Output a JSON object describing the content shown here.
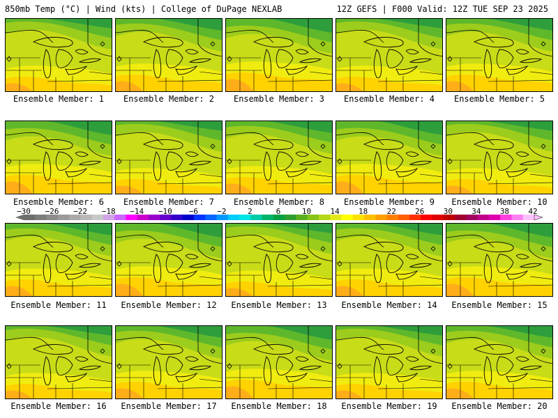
{
  "header": {
    "left_title": "850mb Temp (°C) | Wind (kts) | College of DuPage NEXLAB",
    "right_title": "12Z GEFS | F000 Valid: 12Z TUE SEP 23 2025"
  },
  "members": [
    {
      "label": "Ensemble Member: 1"
    },
    {
      "label": "Ensemble Member: 2"
    },
    {
      "label": "Ensemble Member: 3"
    },
    {
      "label": "Ensemble Member: 4"
    },
    {
      "label": "Ensemble Member: 5"
    },
    {
      "label": "Ensemble Member: 6"
    },
    {
      "label": "Ensemble Member: 7"
    },
    {
      "label": "Ensemble Member: 8"
    },
    {
      "label": "Ensemble Member: 9"
    },
    {
      "label": "Ensemble Member: 10"
    },
    {
      "label": "Ensemble Member: 11"
    },
    {
      "label": "Ensemble Member: 12"
    },
    {
      "label": "Ensemble Member: 13"
    },
    {
      "label": "Ensemble Member: 14"
    },
    {
      "label": "Ensemble Member: 15"
    },
    {
      "label": "Ensemble Member: 16"
    },
    {
      "label": "Ensemble Member: 17"
    },
    {
      "label": "Ensemble Member: 18"
    },
    {
      "label": "Ensemble Member: 19"
    },
    {
      "label": "Ensemble Member: 20"
    }
  ],
  "colorbar": {
    "ticks": [
      "−30",
      "−26",
      "−22",
      "−18",
      "−14",
      "−10",
      "−6",
      "−2",
      "2",
      "6",
      "10",
      "14",
      "18",
      "22",
      "26",
      "30",
      "34",
      "38",
      "42"
    ],
    "colors": [
      "#6e6e6e",
      "#7d7d7d",
      "#8c8c8c",
      "#9b9b9b",
      "#aaaaaa",
      "#b9b9b9",
      "#c8c8c8",
      "#d2a3e6",
      "#cc66ff",
      "#ff00ff",
      "#cc00cc",
      "#9900cc",
      "#6600cc",
      "#3300cc",
      "#0000cc",
      "#0033ff",
      "#0066ff",
      "#0099ff",
      "#00ccff",
      "#00e5e5",
      "#00ccaa",
      "#00b36b",
      "#00a040",
      "#2f9e2f",
      "#5aaf1e",
      "#86c41a",
      "#b5d81a",
      "#e2e81c",
      "#ffff00",
      "#ffe000",
      "#ffc000",
      "#ffa000",
      "#ff8000",
      "#ff6000",
      "#ff3000",
      "#ff0000",
      "#e00000",
      "#c00000",
      "#a00030",
      "#a00060",
      "#c0008a",
      "#e000b0",
      "#ff40e0",
      "#ff80f0",
      "#ffc0ff"
    ]
  },
  "map_colors": {
    "dark_green": "#2e9e3c",
    "green": "#5fb82c",
    "light_green": "#9ccc1c",
    "yellow_green": "#c8dc18",
    "yellow": "#f0ec10",
    "gold": "#ffd200",
    "orange": "#ffae1a"
  }
}
